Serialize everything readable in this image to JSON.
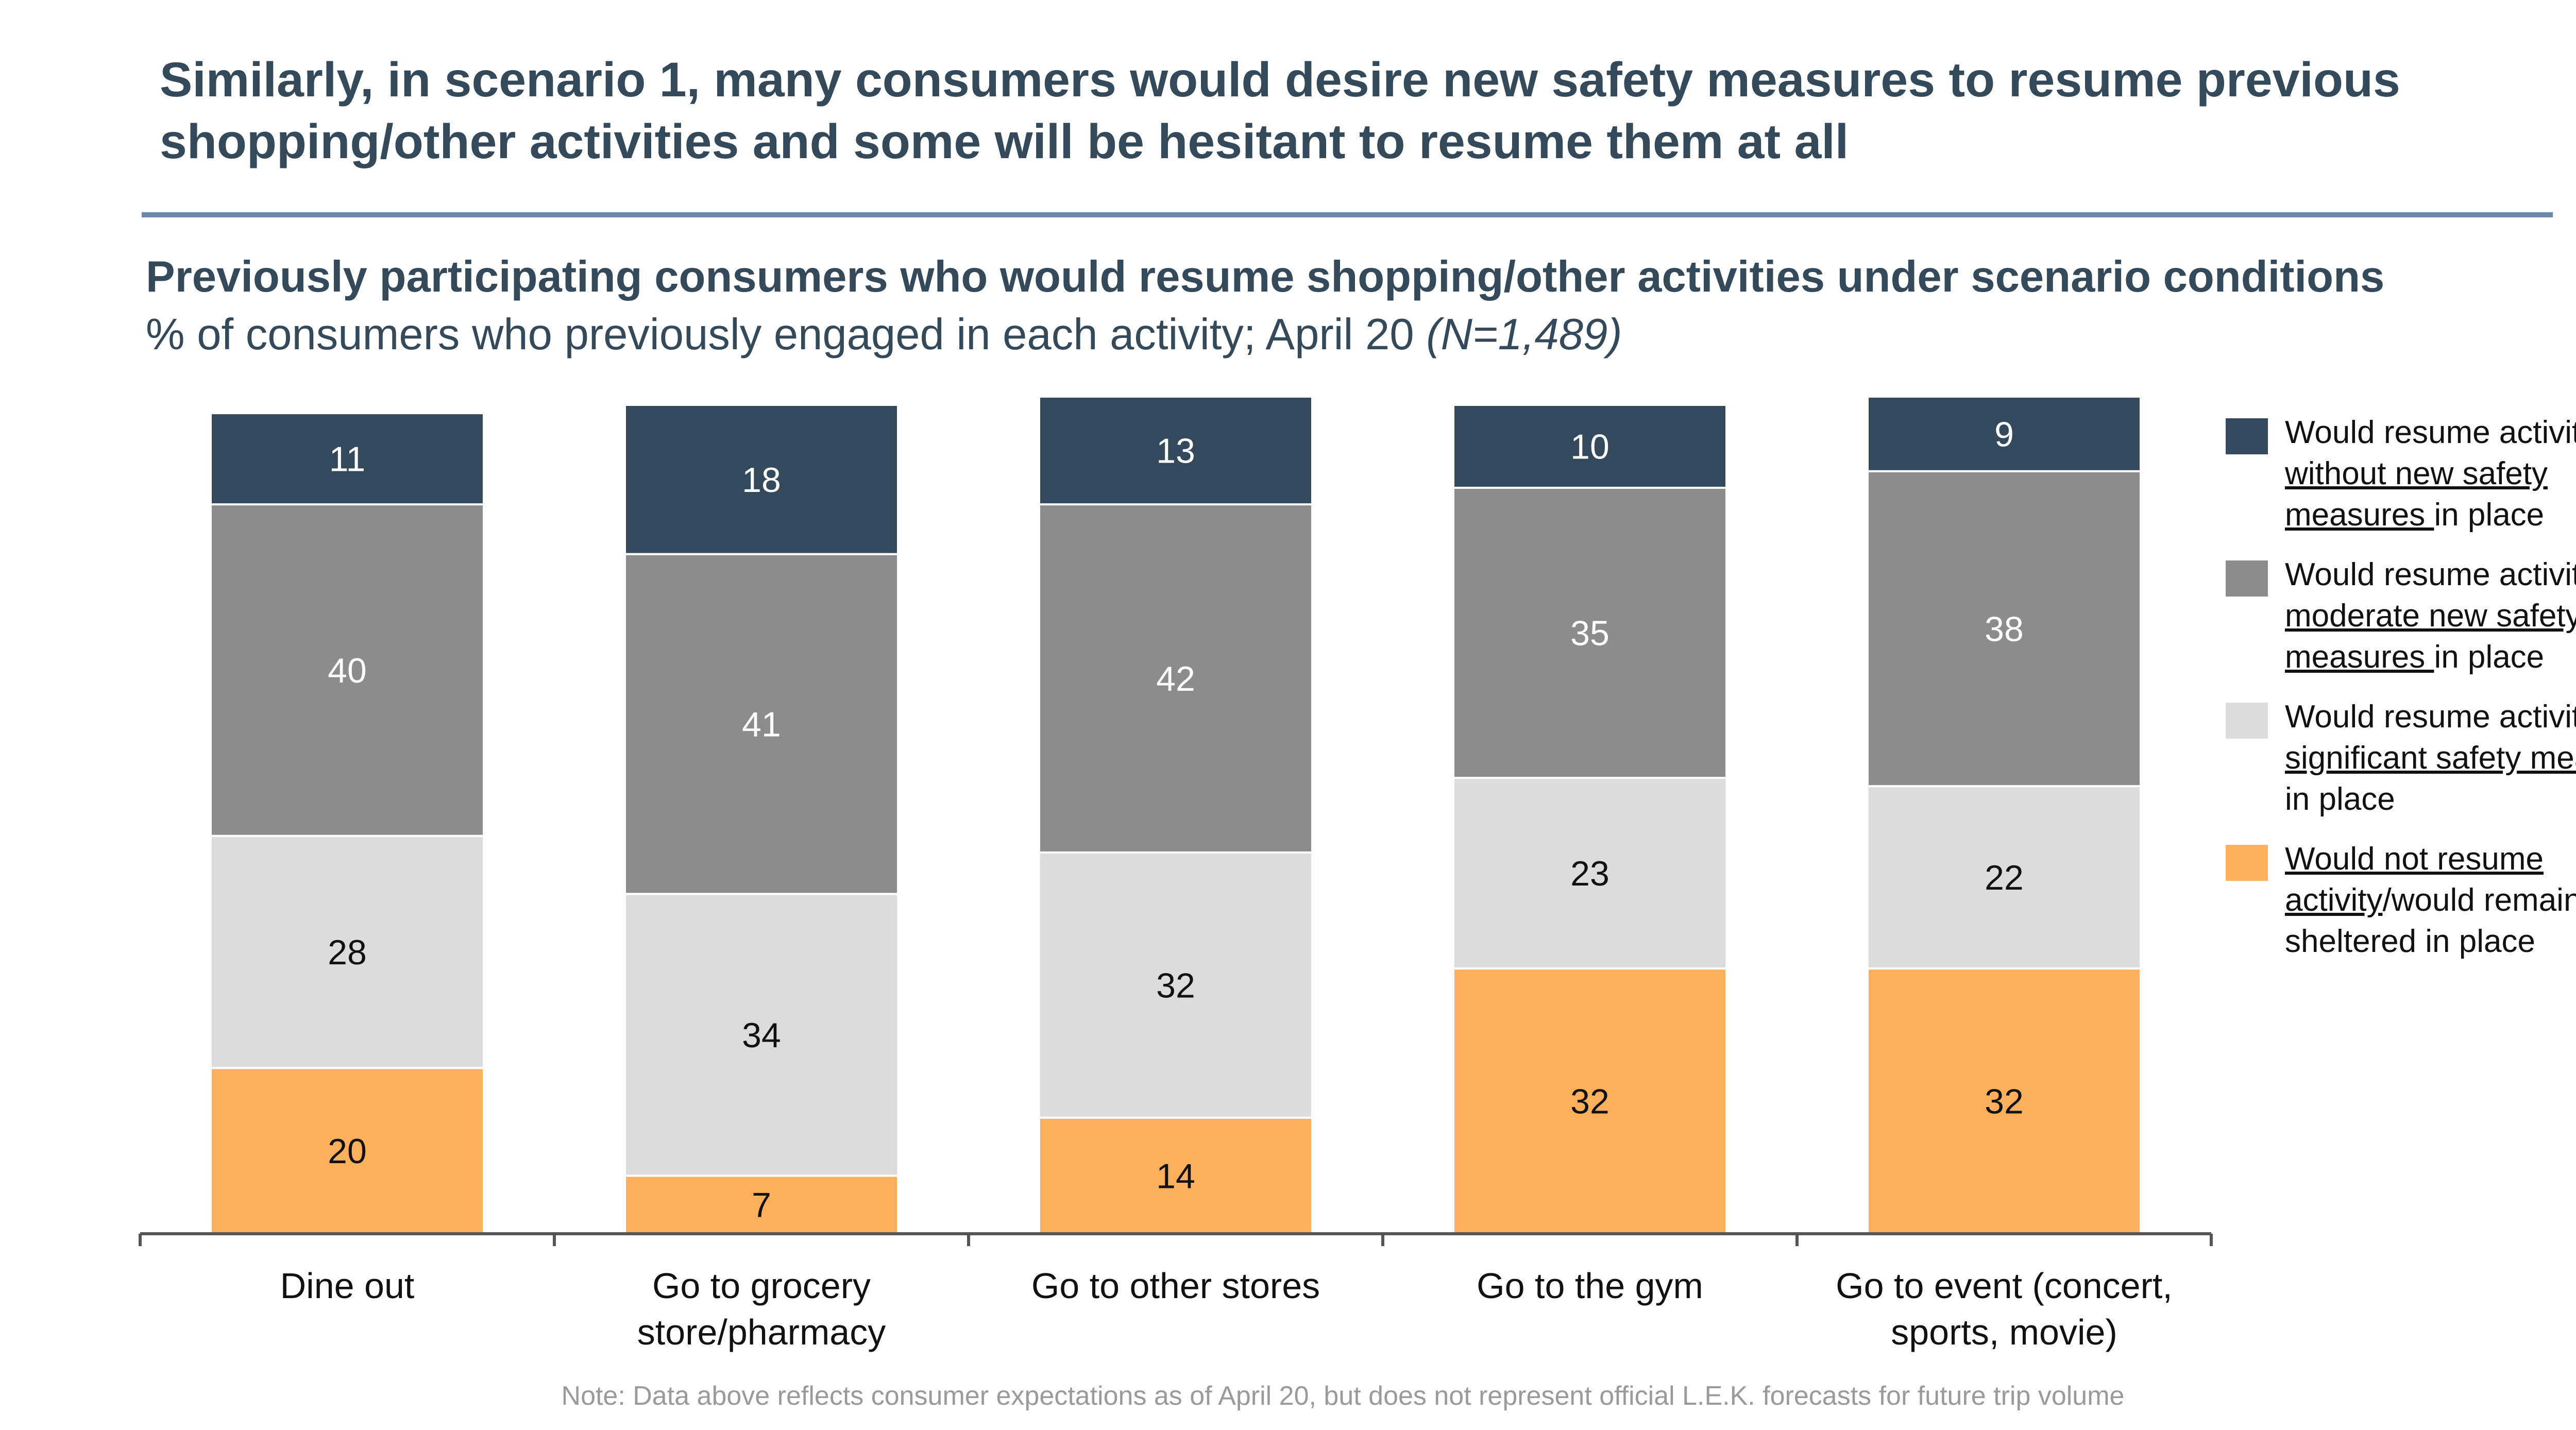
{
  "title": "Similarly, in scenario 1, many consumers would desire new safety measures to resume previous shopping/other activities and some will be hesitant to resume them at all",
  "chart_heading": "Previously participating consumers who would resume shopping/other activities under scenario conditions",
  "chart_subheading": "% of consumers who previously engaged in each activity; April 20",
  "chart_subheading_n": "(N=1,489)",
  "legend": [
    {
      "lead": "Would resume activity ",
      "underlined": "without new safety measures ",
      "tail": "in place",
      "color": "#344a5c"
    },
    {
      "lead": "Would resume activity ",
      "underlined": "with moderate new safety measures ",
      "tail": "in place",
      "color": "#8c8c8c"
    },
    {
      "lead": "Would resume activity ",
      "underlined": "with significant safety measures ",
      "tail": "in place",
      "color": "#dcdcdc"
    },
    {
      "lead": "",
      "underlined": "Would not resume activity",
      "tail": "/would remain sheltered in place",
      "color": "#fdb05c"
    }
  ],
  "footnote": "Note: Data above reflects consumer expectations as of April 20, but does not represent official L.E.K. forecasts for future trip volume",
  "chart_data": {
    "type": "bar",
    "stacked": true,
    "categories": [
      "Dine out",
      "Go to grocery store/pharmacy",
      "Go to other stores",
      "Go to the gym",
      "Go to event (concert, sports, movie)"
    ],
    "series": [
      {
        "name": "Would not resume activity/would remain sheltered in place",
        "values": [
          20,
          7,
          14,
          32,
          32
        ],
        "color": "#fdb05c",
        "label_color": "#111111"
      },
      {
        "name": "Would resume activity with significant safety measures in place",
        "values": [
          28,
          34,
          32,
          23,
          22
        ],
        "color": "#dcdcdc",
        "label_color": "#111111"
      },
      {
        "name": "Would resume activity with moderate new safety measures in place",
        "values": [
          40,
          41,
          42,
          35,
          38
        ],
        "color": "#8c8c8c",
        "label_color": "#ffffff"
      },
      {
        "name": "Would resume activity without new safety measures in place",
        "values": [
          11,
          18,
          13,
          10,
          9
        ],
        "color": "#344a5c",
        "label_color": "#ffffff"
      }
    ],
    "ylim": [
      0,
      100
    ],
    "legend_position": "right",
    "grid": false
  }
}
